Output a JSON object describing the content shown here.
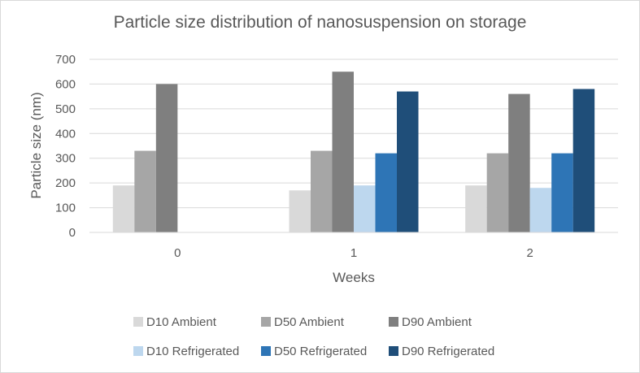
{
  "chart_data": {
    "type": "bar",
    "title": "Particle size distribution of nanosuspension on storage",
    "xlabel": "Weeks",
    "ylabel": "Particle size (nm)",
    "categories": [
      "0",
      "1",
      "2"
    ],
    "ylim": [
      0,
      700
    ],
    "yticks": [
      "0",
      "100",
      "200",
      "300",
      "400",
      "500",
      "600",
      "700"
    ],
    "grid": true,
    "legend_position": "bottom",
    "series": [
      {
        "name": "D10 Ambient",
        "color": "#d9d9d9",
        "values": [
          190,
          170,
          190
        ]
      },
      {
        "name": "D50 Ambient",
        "color": "#a6a6a6",
        "values": [
          330,
          330,
          320
        ]
      },
      {
        "name": "D90 Ambient",
        "color": "#7f7f7f",
        "values": [
          600,
          650,
          560
        ]
      },
      {
        "name": "D10 Refrigerated",
        "color": "#bdd7ee",
        "values": [
          null,
          190,
          180
        ]
      },
      {
        "name": "D50 Refrigerated",
        "color": "#2e75b6",
        "values": [
          null,
          320,
          320
        ]
      },
      {
        "name": "D90 Refrigerated",
        "color": "#1f4e79",
        "values": [
          null,
          570,
          580
        ]
      }
    ]
  }
}
